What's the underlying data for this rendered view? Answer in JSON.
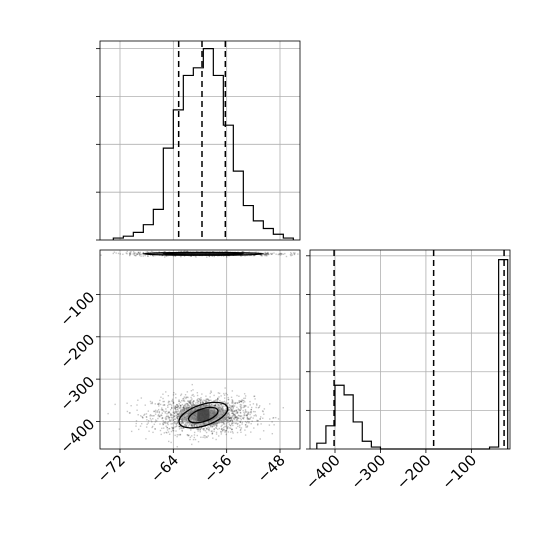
{
  "chart_data": [
    {
      "type": "histogram",
      "panel": "top-left marginal",
      "xlim": [
        -75,
        -45
      ],
      "bin_edges": [
        -73,
        -71.5,
        -70,
        -68.5,
        -67,
        -65.5,
        -64,
        -62.5,
        -61,
        -59.5,
        -58,
        -56.5,
        -55,
        -53.5,
        -52,
        -50.5,
        -49,
        -47.5,
        -46
      ],
      "counts": [
        1,
        2,
        4,
        8,
        16,
        48,
        68,
        86,
        90,
        100,
        86,
        60,
        36,
        18,
        10,
        6,
        3,
        1
      ],
      "ylim": [
        0,
        104
      ],
      "quantile_lines": [
        -63.2,
        -59.7,
        -56.2
      ],
      "ytick_values": [
        0,
        25,
        50,
        75,
        100
      ],
      "grid": true
    },
    {
      "type": "scatter",
      "panel": "bottom-left 2D density",
      "xlim": [
        -75,
        -45
      ],
      "ylim": [
        -465,
        5
      ],
      "xticks": [
        -72,
        -64,
        -56,
        -48
      ],
      "yticks": [
        -100,
        -200,
        -300,
        -400
      ],
      "xtick_labels": [
        "−72",
        "−64",
        "−56",
        "−48"
      ],
      "ytick_labels": [
        "−100",
        "−200",
        "−300",
        "−400"
      ],
      "clusters": [
        {
          "center": [
            -59.5,
            -385
          ],
          "spread": [
            3.8,
            22
          ],
          "n": 1700
        },
        {
          "center": [
            -59.5,
            -4
          ],
          "spread": [
            5.5,
            2.5
          ],
          "n": 900
        }
      ],
      "contour_levels": [
        {
          "rx": 3.8,
          "ry": 25
        },
        {
          "rx": 2.3,
          "ry": 15
        }
      ],
      "grid": true
    },
    {
      "type": "histogram",
      "panel": "bottom-right marginal",
      "xlim": [
        -455,
        -15
      ],
      "bin_edges": [
        -440,
        -420,
        -400,
        -380,
        -360,
        -340,
        -320,
        -300,
        -280,
        -260,
        -240,
        -220,
        -200,
        -180,
        -160,
        -140,
        -120,
        -100,
        -80,
        -60,
        -40,
        -20
      ],
      "counts": [
        3,
        12,
        33,
        28,
        14,
        4,
        1,
        0,
        0,
        0,
        0,
        0,
        0,
        0,
        0,
        0,
        0,
        0,
        0,
        1,
        98
      ],
      "ylim": [
        0,
        103
      ],
      "quantile_lines": [
        -402,
        -183,
        -28
      ],
      "xticks": [
        -400,
        -300,
        -200,
        -100
      ],
      "xtick_labels": [
        "−400",
        "−300",
        "−200",
        "−100"
      ],
      "grid": true
    }
  ]
}
